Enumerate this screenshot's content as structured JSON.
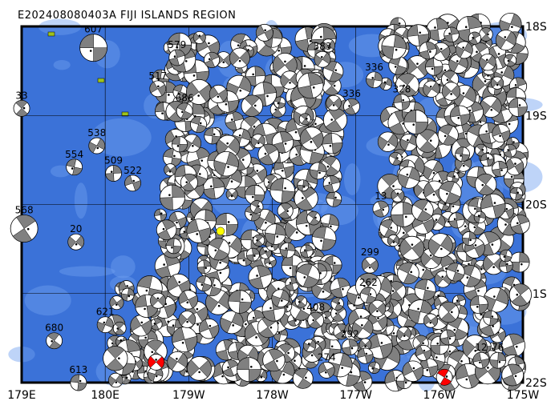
{
  "map": {
    "title": "E202408080403A FIJI ISLANDS REGION",
    "lon_labels": [
      {
        "lon": 179,
        "label": "179E"
      },
      {
        "lon": 180,
        "label": "180E"
      },
      {
        "lon": 181,
        "label": "179W"
      },
      {
        "lon": 182,
        "label": "178W"
      },
      {
        "lon": 183,
        "label": "177W"
      },
      {
        "lon": 184,
        "label": "176W"
      },
      {
        "lon": 185,
        "label": "175W"
      }
    ],
    "lat_labels": [
      {
        "lat": -18,
        "label": "18S"
      },
      {
        "lat": -19,
        "label": "19S"
      },
      {
        "lat": -20,
        "label": "20S"
      },
      {
        "lat": -21,
        "label": "21S"
      },
      {
        "lat": -22,
        "label": "22S"
      }
    ],
    "extent": {
      "lon": [
        179,
        185
      ],
      "lat": [
        -22,
        -18
      ]
    },
    "colors": {
      "ocean": "#3b72d8",
      "shallow": "#6f9ff0",
      "land": "#9fc21c",
      "mechanism": "#808080",
      "highlight": "#ff0000",
      "epicenter": "#ffff00"
    },
    "epicenter": {
      "lon": 181.38,
      "lat": -20.3
    },
    "events": [
      {
        "lon": 179.86,
        "lat": -18.24,
        "label": "607",
        "big": true
      },
      {
        "lon": 180.86,
        "lat": -18.35,
        "label": "579"
      },
      {
        "lon": 180.63,
        "lat": -18.7,
        "label": "517"
      },
      {
        "lon": 179.0,
        "lat": -18.92,
        "label": "33"
      },
      {
        "lon": 179.9,
        "lat": -19.34,
        "label": "538"
      },
      {
        "lon": 179.63,
        "lat": -19.58,
        "label": "554"
      },
      {
        "lon": 180.1,
        "lat": -19.65,
        "label": "509"
      },
      {
        "lon": 180.33,
        "lat": -19.76,
        "label": "522"
      },
      {
        "lon": 179.03,
        "lat": -20.27,
        "label": "568",
        "big": true
      },
      {
        "lon": 179.65,
        "lat": -20.42,
        "label": "20"
      },
      {
        "lon": 180.95,
        "lat": -18.95,
        "label": "686"
      },
      {
        "lon": 183.22,
        "lat": -18.6,
        "label": "336"
      },
      {
        "lon": 183.55,
        "lat": -18.85,
        "label": "328"
      },
      {
        "lon": 183.3,
        "lat": -20.05,
        "label": "13"
      },
      {
        "lon": 183.17,
        "lat": -20.68,
        "label": "299"
      },
      {
        "lon": 179.39,
        "lat": -21.53,
        "label": "680"
      },
      {
        "lon": 180.0,
        "lat": -21.35,
        "label": "621"
      },
      {
        "lon": 179.68,
        "lat": -22.0,
        "label": "613"
      },
      {
        "lon": 182.93,
        "lat": -21.6,
        "label": "292"
      },
      {
        "lon": 182.65,
        "lat": -21.86,
        "label": "274"
      },
      {
        "lon": 182.52,
        "lat": -21.3,
        "label": "408"
      },
      {
        "lon": 182.6,
        "lat": -18.37,
        "label": "383"
      },
      {
        "lon": 183.15,
        "lat": -21.02,
        "label": "262"
      },
      {
        "lon": 184.7,
        "lat": -21.75,
        "label": "76"
      },
      {
        "lon": 184.5,
        "lat": -21.75,
        "label": "12"
      },
      {
        "lon": 182.95,
        "lat": -18.9,
        "label": "336"
      },
      {
        "lon": 180.61,
        "lat": -21.77,
        "label": "",
        "highlight": true
      },
      {
        "lon": 184.06,
        "lat": -21.94,
        "label": "",
        "highlight": true
      }
    ]
  }
}
